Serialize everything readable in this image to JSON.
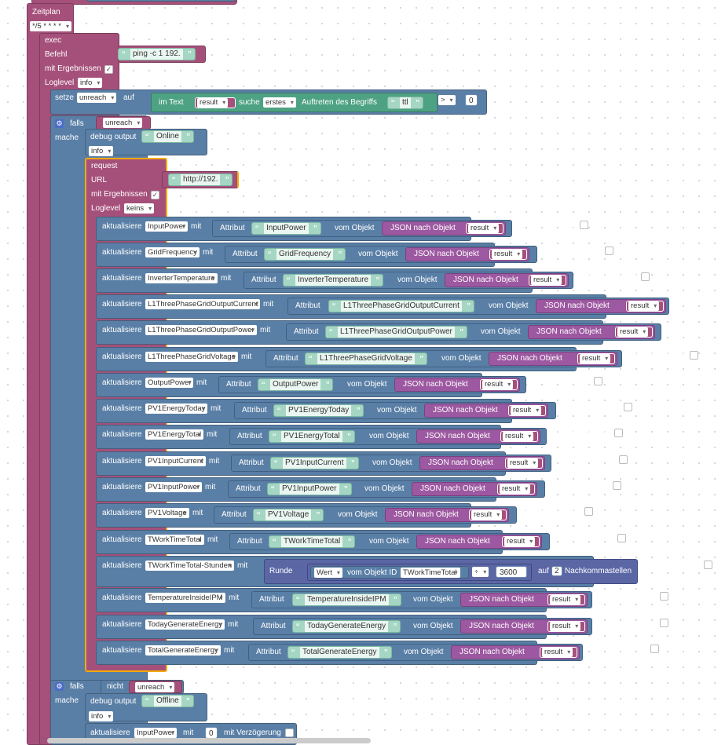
{
  "schedule": {
    "title": "Zeitplan",
    "cron": "*/5 * * * *"
  },
  "exec": {
    "title": "exec",
    "command_label": "Befehl",
    "command": "ping -c 1 192.",
    "with_results": "mit Ergebnissen",
    "loglevel_label": "Loglevel",
    "loglevel": "info"
  },
  "setze": {
    "label": "setze",
    "var": "unreach",
    "auf": "auf",
    "in_text": "im Text",
    "result": "result",
    "suche": "suche",
    "which": "erstes",
    "auftreten": "Auftreten des Begriffs",
    "term": "ttl",
    "op": ">",
    "value": "0"
  },
  "if1": {
    "falls": "falls",
    "var": "unreach",
    "mache": "mache",
    "debug_label": "debug output",
    "debug_text": "Online",
    "debug_level": "info"
  },
  "request": {
    "title": "request",
    "url_label": "URL",
    "url": "http://192.",
    "with_results": "mit Ergebnissen",
    "loglevel_label": "Loglevel",
    "loglevel": "keins"
  },
  "common": {
    "aktualisiere": "aktualisiere",
    "mit": "mit",
    "attribut": "Attribut",
    "vom_objekt": "vom Objekt",
    "json": "JSON nach Objekt",
    "result": "result",
    "delay": "mit Verzögerung"
  },
  "updates": [
    {
      "obj": "InputPower",
      "attr": "InputPower"
    },
    {
      "obj": "GridFrequency",
      "attr": "GridFrequency"
    },
    {
      "obj": "InverterTemperature",
      "attr": "InverterTemperature"
    },
    {
      "obj": "L1ThreePhaseGridOutputCurrent",
      "attr": "L1ThreePhaseGridOutputCurrent"
    },
    {
      "obj": "L1ThreePhaseGridOutputPower",
      "attr": "L1ThreePhaseGridOutputPower"
    },
    {
      "obj": "L1ThreePhaseGridVoltage",
      "attr": "L1ThreePhaseGridVoltage"
    },
    {
      "obj": "OutputPower",
      "attr": "OutputPower"
    },
    {
      "obj": "PV1EnergyToday",
      "attr": "PV1EnergyToday"
    },
    {
      "obj": "PV1EnergyTotal",
      "attr": "PV1EnergyTotal"
    },
    {
      "obj": "PV1InputCurrent",
      "attr": "PV1InputCurrent"
    },
    {
      "obj": "PV1InputPower",
      "attr": "PV1InputPower"
    },
    {
      "obj": "PV1Voltage",
      "attr": "PV1Voltage"
    },
    {
      "obj": "TWorkTimeTotal",
      "attr": "TWorkTimeTotal"
    },
    {
      "obj": "TWorkTimeTotal-Stunden",
      "attr": ""
    },
    {
      "obj": "TemperatureInsideIPM",
      "attr": "TemperatureInsideIPM"
    },
    {
      "obj": "TodayGenerateEnergy",
      "attr": "TodayGenerateEnergy"
    },
    {
      "obj": "TotalGenerateEnergy",
      "attr": "TotalGenerateEnergy"
    }
  ],
  "round": {
    "runde": "Runde",
    "wert": "Wert",
    "vom_objekt_id": "vom Objekt ID",
    "id": "TWorkTimeTotal",
    "op": "÷",
    "divisor": "3600",
    "auf": "auf",
    "places": "2",
    "nachkomma": "Nachkommastellen"
  },
  "if2": {
    "falls": "falls",
    "nicht": "nicht",
    "var": "unreach",
    "mache": "mache",
    "debug_label": "debug output",
    "debug_text": "Offline",
    "debug_level": "info",
    "upd_obj": "InputPower",
    "upd_val": "0"
  },
  "colors": {
    "pink": "#a5507a",
    "blue": "#5a7fa6",
    "teal": "#4ea284",
    "purple": "#9c58a0"
  }
}
